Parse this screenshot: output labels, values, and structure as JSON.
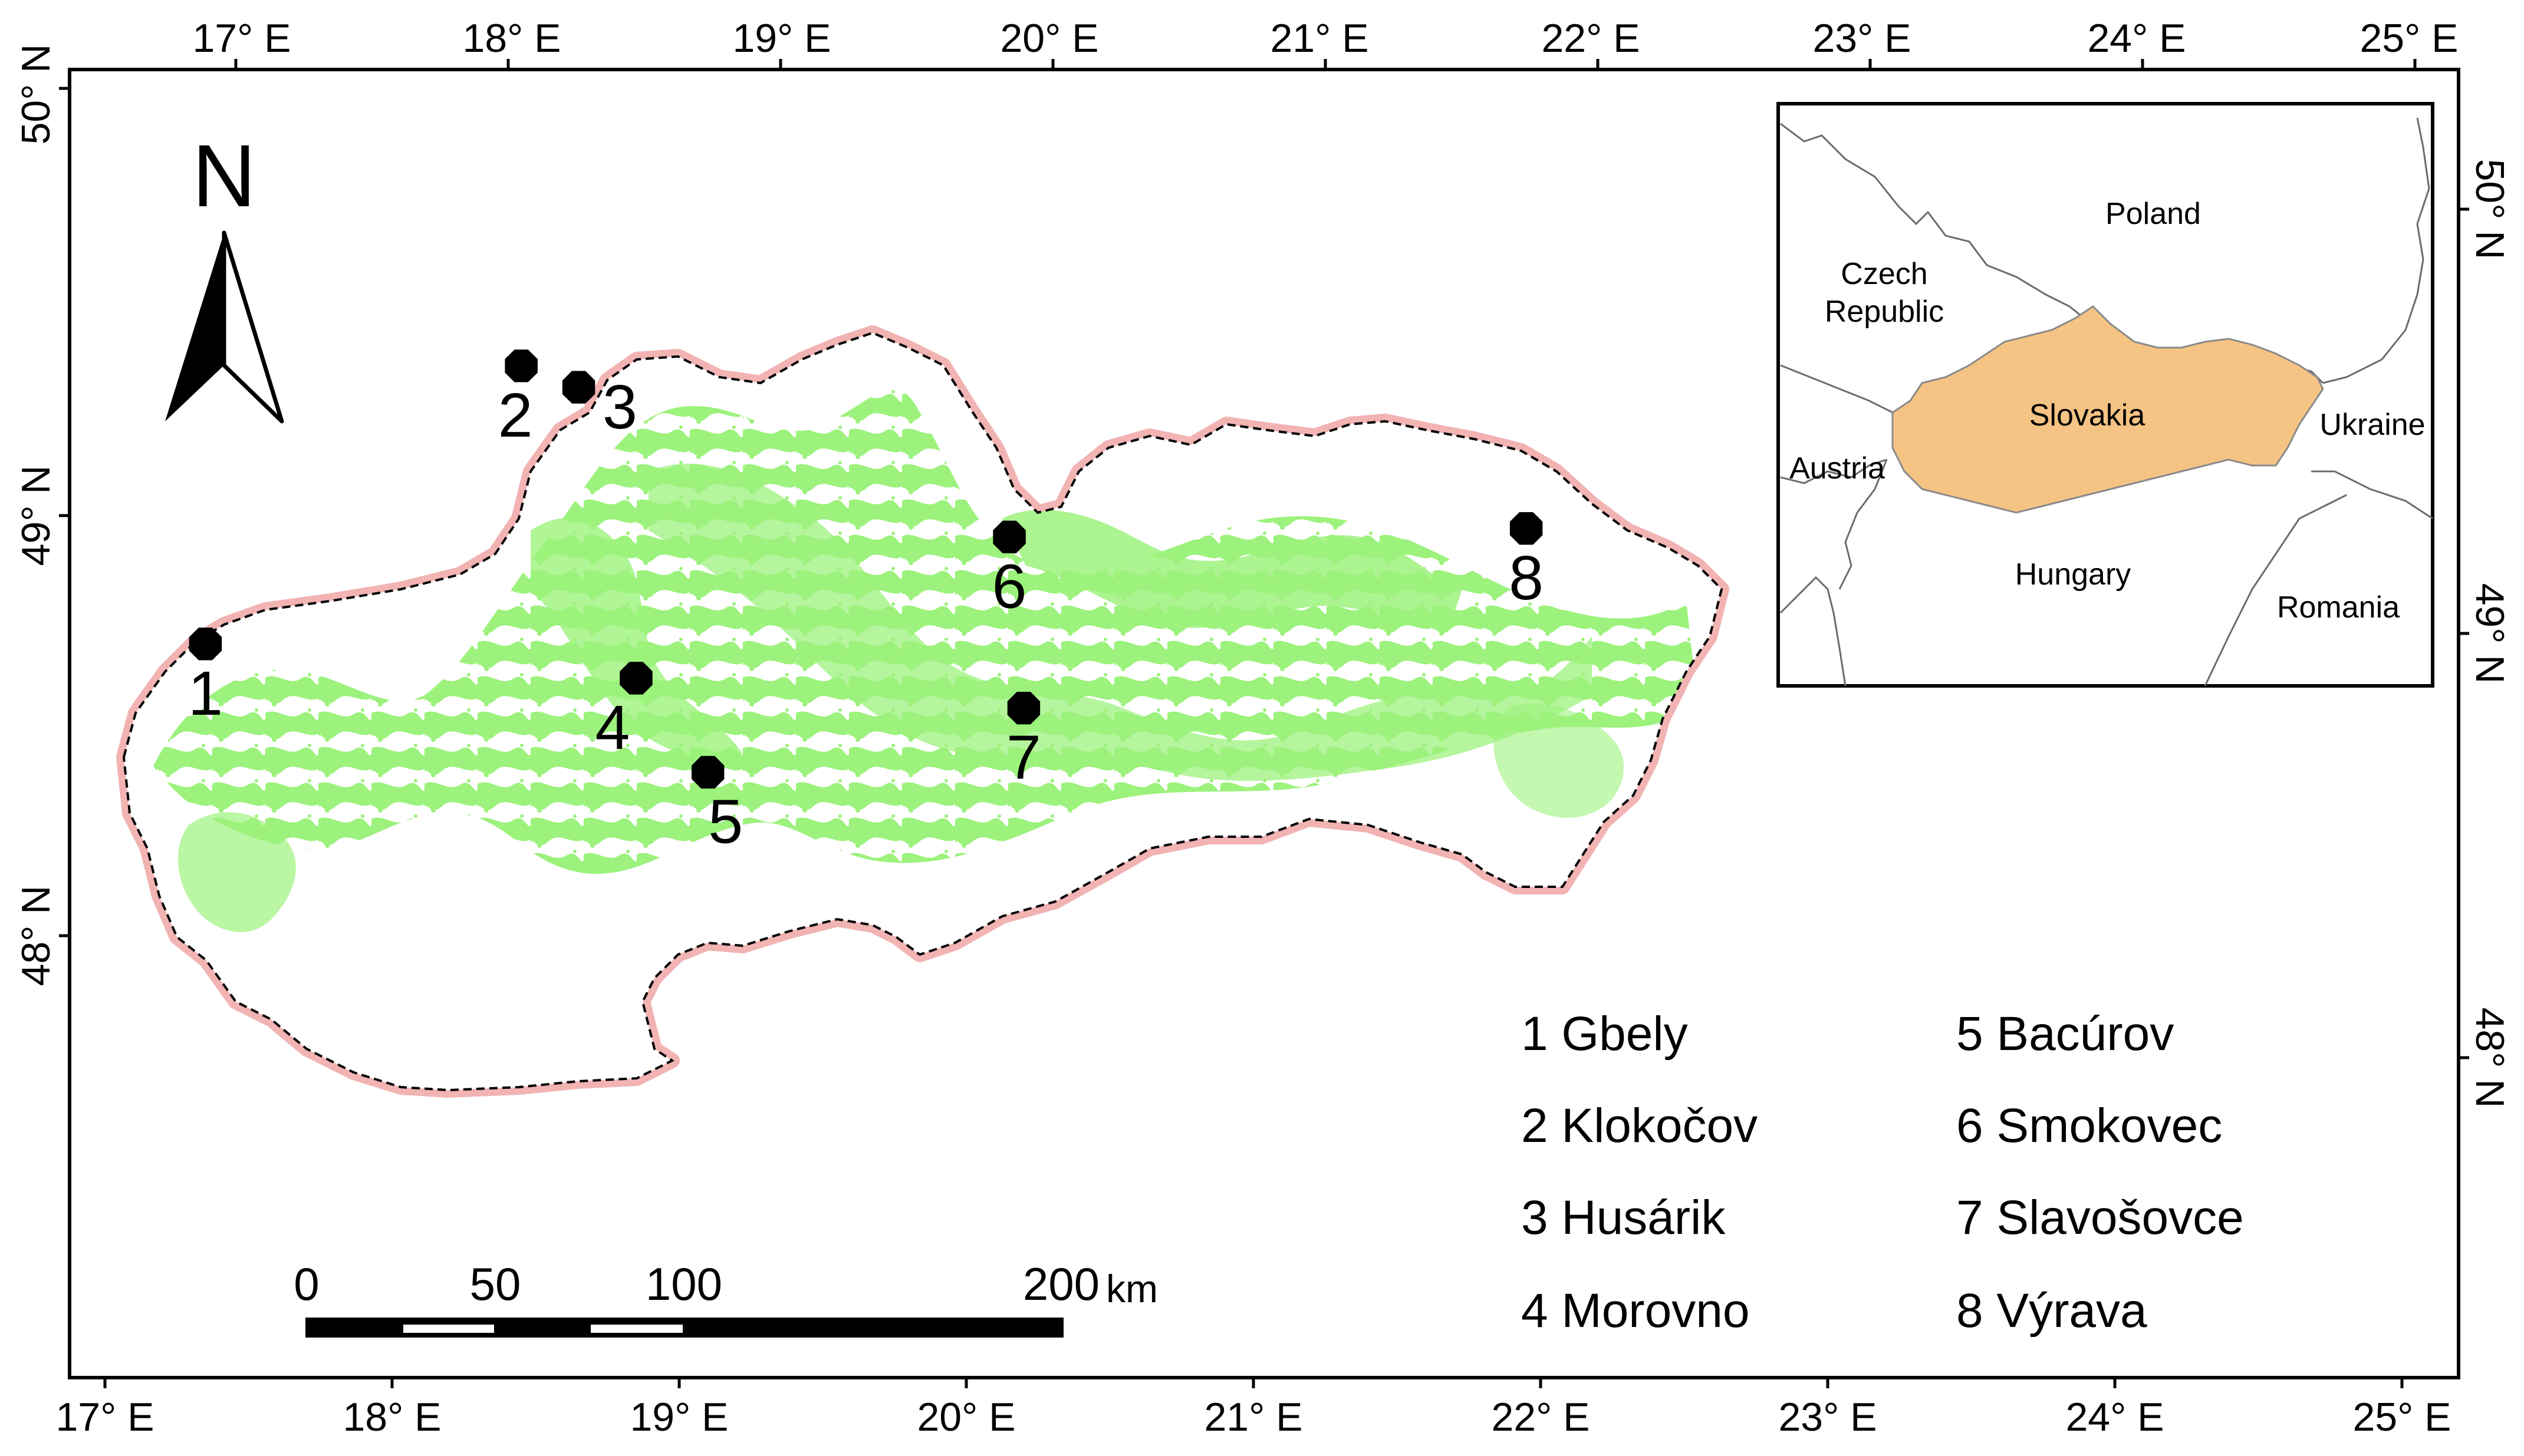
{
  "map": {
    "top_axis": [
      "17° E",
      "18° E",
      "19° E",
      "20° E",
      "21° E",
      "22° E",
      "23° E",
      "24° E",
      "25° E"
    ],
    "bottom_axis": [
      "17° E",
      "18° E",
      "19° E",
      "20° E",
      "21° E",
      "22° E",
      "23° E",
      "24° E",
      "25° E"
    ],
    "left_axis": [
      "50° N",
      "49° N",
      "48° N"
    ],
    "right_axis": [
      "50° N",
      "49° N",
      "48° N"
    ],
    "north_arrow": {
      "label": "N",
      "icon": "north-arrow-icon"
    },
    "scale_bar": {
      "ticks": [
        "0",
        "50",
        "100",
        "200"
      ],
      "unit": "km"
    },
    "sites": [
      {
        "num": "1",
        "lon": 17.35,
        "lat": 48.7
      },
      {
        "num": "2",
        "lon": 18.45,
        "lat": 49.35
      },
      {
        "num": "3",
        "lon": 18.65,
        "lat": 49.3
      },
      {
        "num": "4",
        "lon": 18.85,
        "lat": 48.62
      },
      {
        "num": "5",
        "lon": 19.1,
        "lat": 48.4
      },
      {
        "num": "6",
        "lon": 20.15,
        "lat": 48.95
      },
      {
        "num": "7",
        "lon": 20.2,
        "lat": 48.55
      },
      {
        "num": "8",
        "lon": 21.95,
        "lat": 48.97
      }
    ],
    "legend": [
      {
        "text": "1 Gbely"
      },
      {
        "text": "2 Klokočov"
      },
      {
        "text": "3 Husárik"
      },
      {
        "text": "4 Morovno"
      },
      {
        "text": "5 Bacúrov"
      },
      {
        "text": "6 Smokovec"
      },
      {
        "text": "7 Slavošovce"
      },
      {
        "text": "8 Výrava"
      }
    ],
    "inset": {
      "countries": [
        "Poland",
        "Czech Republic",
        "Slovakia",
        "Ukraine",
        "Austria",
        "Hungary",
        "Romania"
      ],
      "czech_line1": "Czech",
      "czech_line2": "Republic"
    },
    "colors": {
      "forest": "#9cf27c",
      "border_halo": "#f2b3b3",
      "slovakia_inset": "#f5c383",
      "site_marker": "#000000"
    }
  }
}
